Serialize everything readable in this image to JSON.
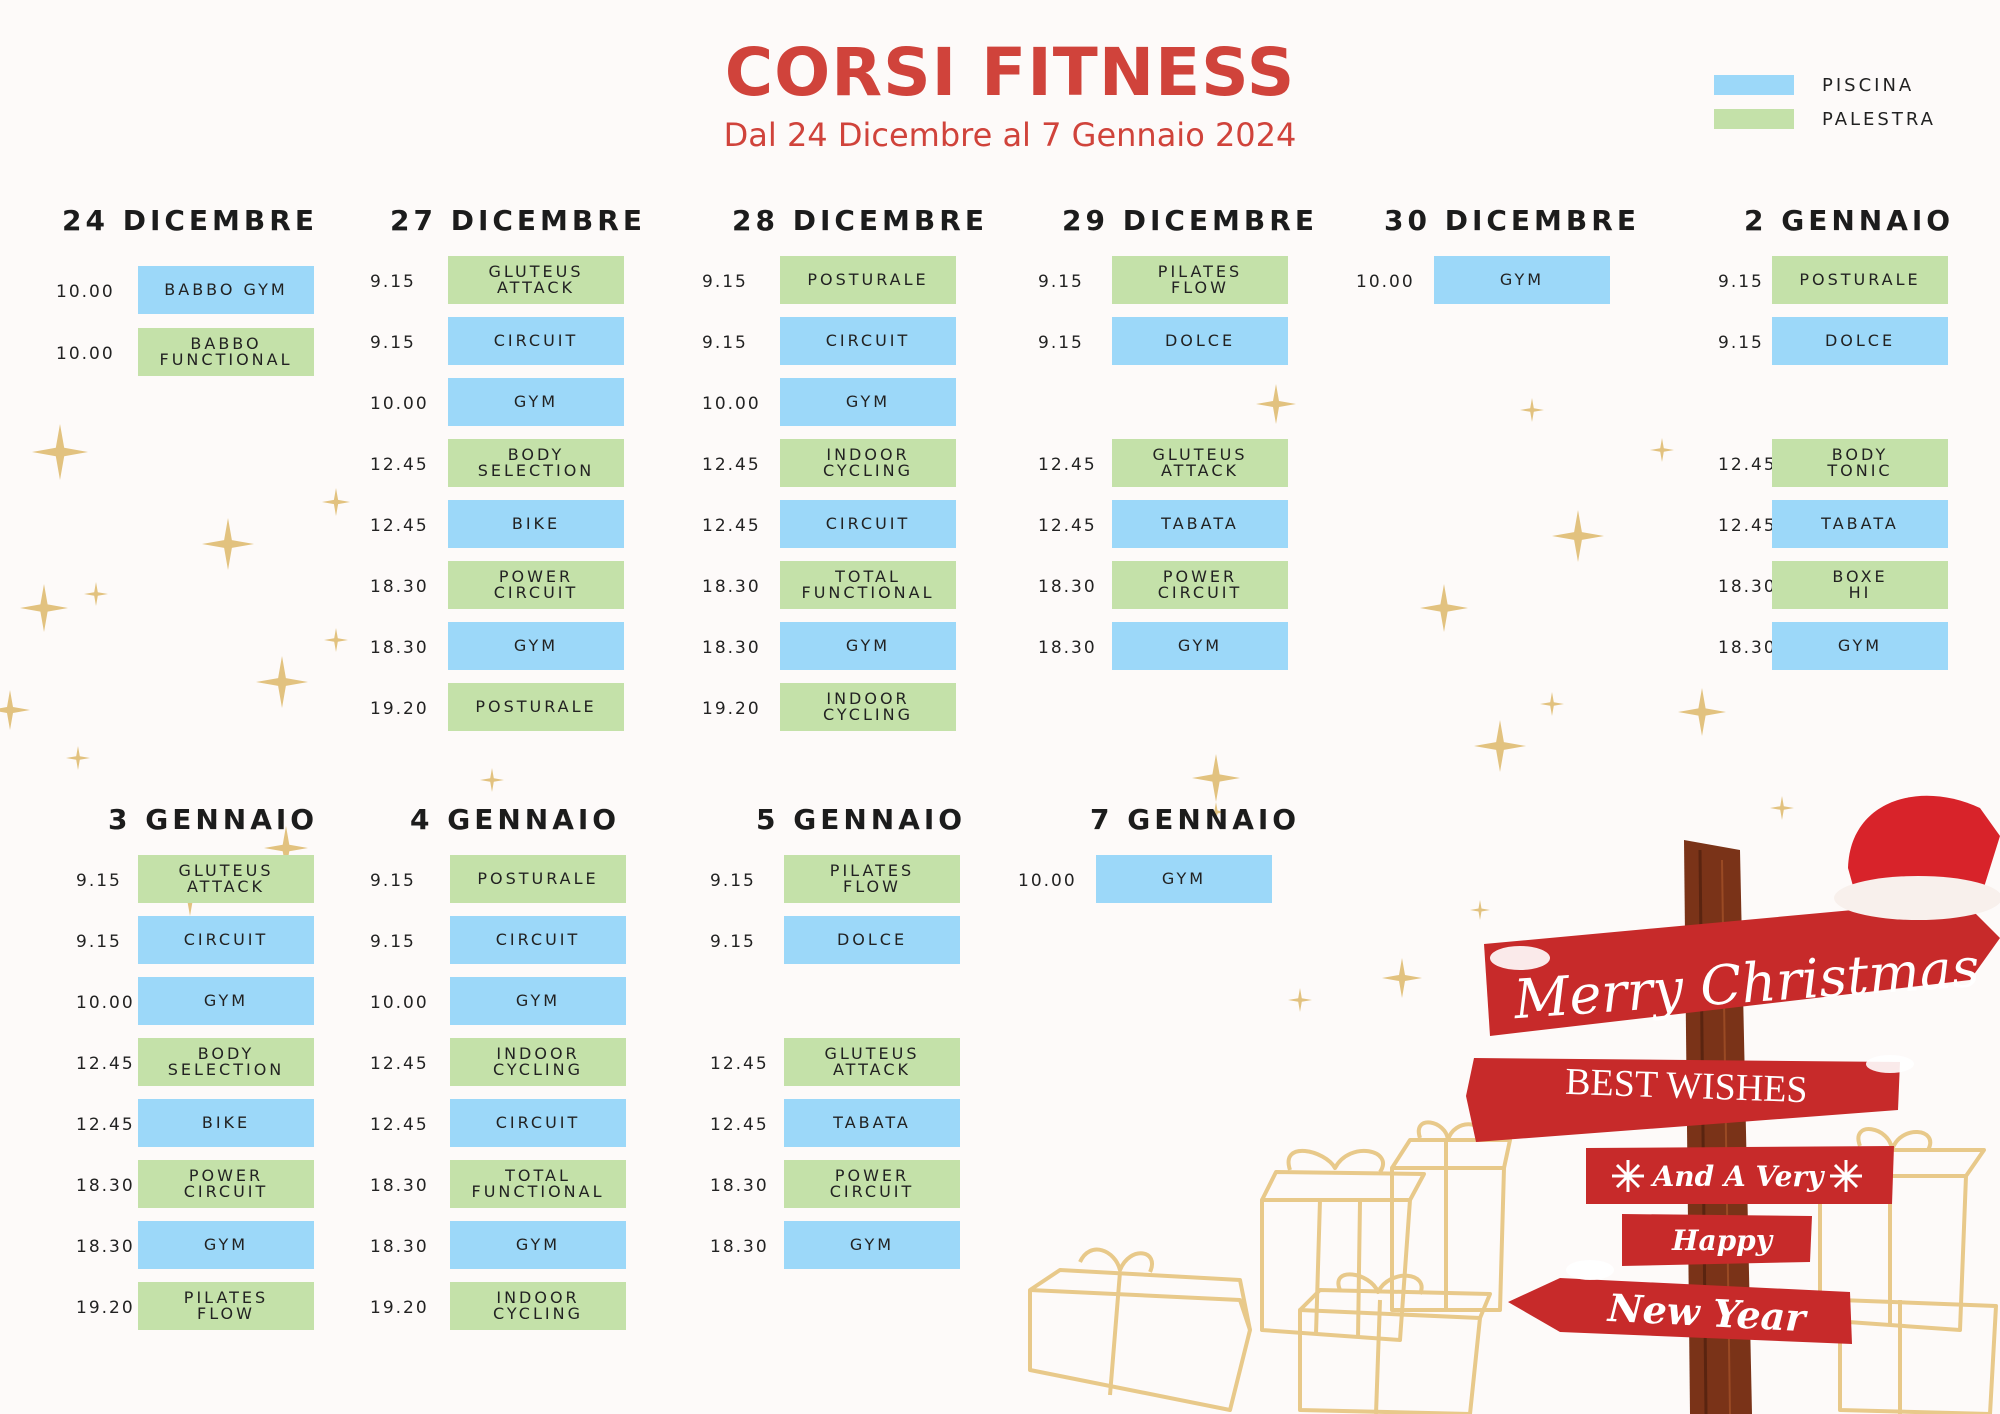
{
  "header": {
    "title": "CORSI FITNESS",
    "subtitle": "Dal 24 Dicembre al 7 Gennaio 2024"
  },
  "legend": [
    {
      "label": "PISCINA",
      "color": "#9cd8f9"
    },
    {
      "label": "PALESTRA",
      "color": "#c4e1a9"
    }
  ],
  "colors": {
    "piscina": "#9cd8f9",
    "palestra": "#c4e1a9",
    "title": "#d0433b",
    "sign_red": "#c72a2a",
    "post_brown": "#7a3318",
    "gift_gold": "#e8c98a"
  },
  "days": [
    {
      "title": "24 DICEMBRE",
      "slots": [
        {
          "time": "10.00",
          "course": "BABBO GYM",
          "type": "piscina"
        },
        {
          "time": "10.00",
          "course": "BABBO\nFUNCTIONAL",
          "type": "palestra"
        }
      ]
    },
    {
      "title": "27 DICEMBRE",
      "slots": [
        {
          "time": "9.15",
          "course": "GLUTEUS\nATTACK",
          "type": "palestra"
        },
        {
          "time": "9.15",
          "course": "CIRCUIT",
          "type": "piscina"
        },
        {
          "time": "10.00",
          "course": "GYM",
          "type": "piscina"
        },
        {
          "time": "12.45",
          "course": "BODY\nSELECTION",
          "type": "palestra"
        },
        {
          "time": "12.45",
          "course": "BIKE",
          "type": "piscina"
        },
        {
          "time": "18.30",
          "course": "POWER\nCIRCUIT",
          "type": "palestra"
        },
        {
          "time": "18.30",
          "course": "GYM",
          "type": "piscina"
        },
        {
          "time": "19.20",
          "course": "POSTURALE",
          "type": "palestra"
        }
      ]
    },
    {
      "title": "28 DICEMBRE",
      "slots": [
        {
          "time": "9.15",
          "course": "POSTURALE",
          "type": "palestra"
        },
        {
          "time": "9.15",
          "course": "CIRCUIT",
          "type": "piscina"
        },
        {
          "time": "10.00",
          "course": "GYM",
          "type": "piscina"
        },
        {
          "time": "12.45",
          "course": "INDOOR\nCYCLING",
          "type": "palestra"
        },
        {
          "time": "12.45",
          "course": "CIRCUIT",
          "type": "piscina"
        },
        {
          "time": "18.30",
          "course": "TOTAL\nFUNCTIONAL",
          "type": "palestra"
        },
        {
          "time": "18.30",
          "course": "GYM",
          "type": "piscina"
        },
        {
          "time": "19.20",
          "course": "INDOOR\nCYCLING",
          "type": "palestra"
        }
      ]
    },
    {
      "title": "29 DICEMBRE",
      "slots": [
        {
          "time": "9.15",
          "course": "PILATES\nFLOW",
          "type": "palestra"
        },
        {
          "time": "9.15",
          "course": "DOLCE",
          "type": "piscina"
        },
        {
          "time": "12.45",
          "course": "GLUTEUS\nATTACK",
          "type": "palestra"
        },
        {
          "time": "12.45",
          "course": "TABATA",
          "type": "piscina"
        },
        {
          "time": "18.30",
          "course": "POWER\nCIRCUIT",
          "type": "palestra"
        },
        {
          "time": "18.30",
          "course": "GYM",
          "type": "piscina"
        }
      ]
    },
    {
      "title": "30 DICEMBRE",
      "slots": [
        {
          "time": "10.00",
          "course": "GYM",
          "type": "piscina"
        }
      ]
    },
    {
      "title": "2 GENNAIO",
      "slots": [
        {
          "time": "9.15",
          "course": "POSTURALE",
          "type": "palestra"
        },
        {
          "time": "9.15",
          "course": "DOLCE",
          "type": "piscina"
        },
        {
          "time": "12.45",
          "course": "BODY\nTONIC",
          "type": "palestra"
        },
        {
          "time": "12.45",
          "course": "TABATA",
          "type": "piscina"
        },
        {
          "time": "18.30",
          "course": "BOXE\nHI",
          "type": "palestra"
        },
        {
          "time": "18.30",
          "course": "GYM",
          "type": "piscina"
        }
      ]
    },
    {
      "title": "3 GENNAIO",
      "slots": [
        {
          "time": "9.15",
          "course": "GLUTEUS\nATTACK",
          "type": "palestra"
        },
        {
          "time": "9.15",
          "course": "CIRCUIT",
          "type": "piscina"
        },
        {
          "time": "10.00",
          "course": "GYM",
          "type": "piscina"
        },
        {
          "time": "12.45",
          "course": "BODY\nSELECTION",
          "type": "palestra"
        },
        {
          "time": "12.45",
          "course": "BIKE",
          "type": "piscina"
        },
        {
          "time": "18.30",
          "course": "POWER\nCIRCUIT",
          "type": "palestra"
        },
        {
          "time": "18.30",
          "course": "GYM",
          "type": "piscina"
        },
        {
          "time": "19.20",
          "course": "PILATES\nFLOW",
          "type": "palestra"
        }
      ]
    },
    {
      "title": "4 GENNAIO",
      "slots": [
        {
          "time": "9.15",
          "course": "POSTURALE",
          "type": "palestra"
        },
        {
          "time": "9.15",
          "course": "CIRCUIT",
          "type": "piscina"
        },
        {
          "time": "10.00",
          "course": "GYM",
          "type": "piscina"
        },
        {
          "time": "12.45",
          "course": "INDOOR\nCYCLING",
          "type": "palestra"
        },
        {
          "time": "12.45",
          "course": "CIRCUIT",
          "type": "piscina"
        },
        {
          "time": "18.30",
          "course": "TOTAL\nFUNCTIONAL",
          "type": "palestra"
        },
        {
          "time": "18.30",
          "course": "GYM",
          "type": "piscina"
        },
        {
          "time": "19.20",
          "course": "INDOOR\nCYCLING",
          "type": "palestra"
        }
      ]
    },
    {
      "title": "5 GENNAIO",
      "slots": [
        {
          "time": "9.15",
          "course": "PILATES\nFLOW",
          "type": "palestra"
        },
        {
          "time": "9.15",
          "course": "DOLCE",
          "type": "piscina"
        },
        {
          "time": "12.45",
          "course": "GLUTEUS\nATTACK",
          "type": "palestra"
        },
        {
          "time": "12.45",
          "course": "TABATA",
          "type": "piscina"
        },
        {
          "time": "18.30",
          "course": "POWER\nCIRCUIT",
          "type": "palestra"
        },
        {
          "time": "18.30",
          "course": "GYM",
          "type": "piscina"
        }
      ]
    },
    {
      "title": "7 GENNAIO",
      "slots": [
        {
          "time": "10.00",
          "course": "GYM",
          "type": "piscina"
        }
      ]
    }
  ],
  "signpost": {
    "sign1": "Merry Christmas",
    "sign2": "BEST WISHES",
    "sign3": "And A Very",
    "sign4": "Happy",
    "sign5": "New Year",
    "icons": [
      "santa-hat-icon",
      "snowflake-icon",
      "gift-box-icon",
      "sparkle-star-icon"
    ]
  }
}
